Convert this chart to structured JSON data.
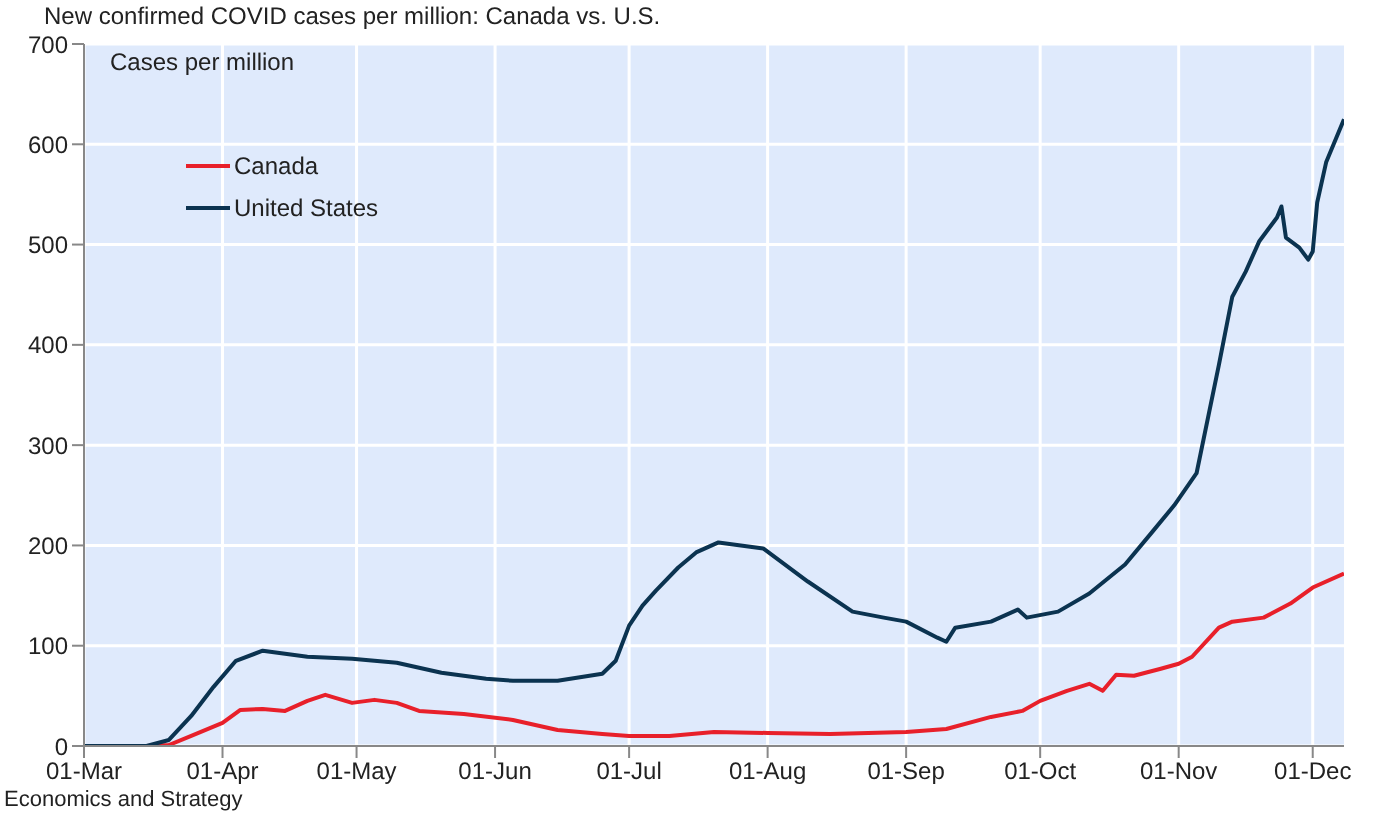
{
  "chart_data": {
    "type": "line",
    "title": "New confirmed COVID cases per million: Canada vs. U.S.",
    "ylabel": "Cases per million",
    "annotations": [
      "Economics and Strategy"
    ],
    "xlim": [
      "--03-01",
      "--12-08"
    ],
    "xticks": [
      {
        "value": "--03-01",
        "label": "01-Mar"
      },
      {
        "value": "--04-01",
        "label": "01-Apr"
      },
      {
        "value": "--05-01",
        "label": "01-May"
      },
      {
        "value": "--06-01",
        "label": "01-Jun"
      },
      {
        "value": "--07-01",
        "label": "01-Jul"
      },
      {
        "value": "--08-01",
        "label": "01-Aug"
      },
      {
        "value": "--09-01",
        "label": "01-Sep"
      },
      {
        "value": "--10-01",
        "label": "01-Oct"
      },
      {
        "value": "--11-01",
        "label": "01-Nov"
      },
      {
        "value": "--12-01",
        "label": "01-Dec"
      }
    ],
    "ylim": [
      0,
      700
    ],
    "yticks": [
      0,
      100,
      200,
      300,
      400,
      500,
      600,
      700
    ],
    "grid": true,
    "legend": "top left",
    "marker": "none",
    "line_style": "solid",
    "series": [
      {
        "name": "Canada",
        "color": "#e8202a",
        "x": [
          "--03-01",
          "--03-15",
          "--03-20",
          "--03-25",
          "--04-01",
          "--04-05",
          "--04-10",
          "--04-15",
          "--04-20",
          "--04-24",
          "--04-30",
          "--05-05",
          "--05-10",
          "--05-15",
          "--05-25",
          "--06-05",
          "--06-15",
          "--06-25",
          "--07-01",
          "--07-10",
          "--07-20",
          "--08-01",
          "--08-15",
          "--09-01",
          "--09-10",
          "--09-20",
          "--09-27",
          "--10-01",
          "--10-07",
          "--10-12",
          "--10-15",
          "--10-18",
          "--10-22",
          "--10-28",
          "--11-01",
          "--11-04",
          "--11-10",
          "--11-13",
          "--11-20",
          "--11-26",
          "--12-01",
          "--12-08"
        ],
        "values": [
          0,
          0,
          1,
          10,
          23,
          36,
          37,
          35,
          45,
          51,
          43,
          46,
          43,
          35,
          32,
          26,
          16,
          12,
          10,
          10,
          14,
          13,
          12,
          14,
          17,
          29,
          35,
          45,
          55,
          62,
          55,
          71,
          70,
          77,
          82,
          89,
          118,
          124,
          128,
          142,
          158,
          172
        ]
      },
      {
        "name": "United States",
        "color": "#0b3350",
        "x": [
          "--03-01",
          "--03-15",
          "--03-20",
          "--03-25",
          "--03-30",
          "--04-04",
          "--04-10",
          "--04-20",
          "--04-30",
          "--05-10",
          "--05-20",
          "--05-30",
          "--06-05",
          "--06-15",
          "--06-25",
          "--06-28",
          "--07-01",
          "--07-04",
          "--07-07",
          "--07-12",
          "--07-16",
          "--07-21",
          "--07-26",
          "--07-31",
          "--08-10",
          "--08-20",
          "--08-27",
          "--09-01",
          "--09-08",
          "--09-10",
          "--09-12",
          "--09-20",
          "--09-26",
          "--09-28",
          "--10-05",
          "--10-12",
          "--10-20",
          "--10-26",
          "--10-31",
          "--11-05",
          "--11-10",
          "--11-13",
          "--11-16",
          "--11-19",
          "--11-23",
          "--11-24",
          "--11-25",
          "--11-28",
          "--11-30",
          "--12-01",
          "--12-02",
          "--12-04",
          "--12-08"
        ],
        "values": [
          0,
          0,
          6,
          30,
          59,
          85,
          95,
          89,
          87,
          83,
          73,
          67,
          65,
          65,
          72,
          85,
          120,
          140,
          155,
          178,
          193,
          203,
          200,
          197,
          164,
          134,
          128,
          124,
          108,
          104,
          118,
          124,
          136,
          128,
          134,
          152,
          181,
          213,
          240,
          272,
          380,
          448,
          473,
          503,
          527,
          538,
          507,
          497,
          485,
          493,
          542,
          582,
          625
        ]
      }
    ]
  }
}
